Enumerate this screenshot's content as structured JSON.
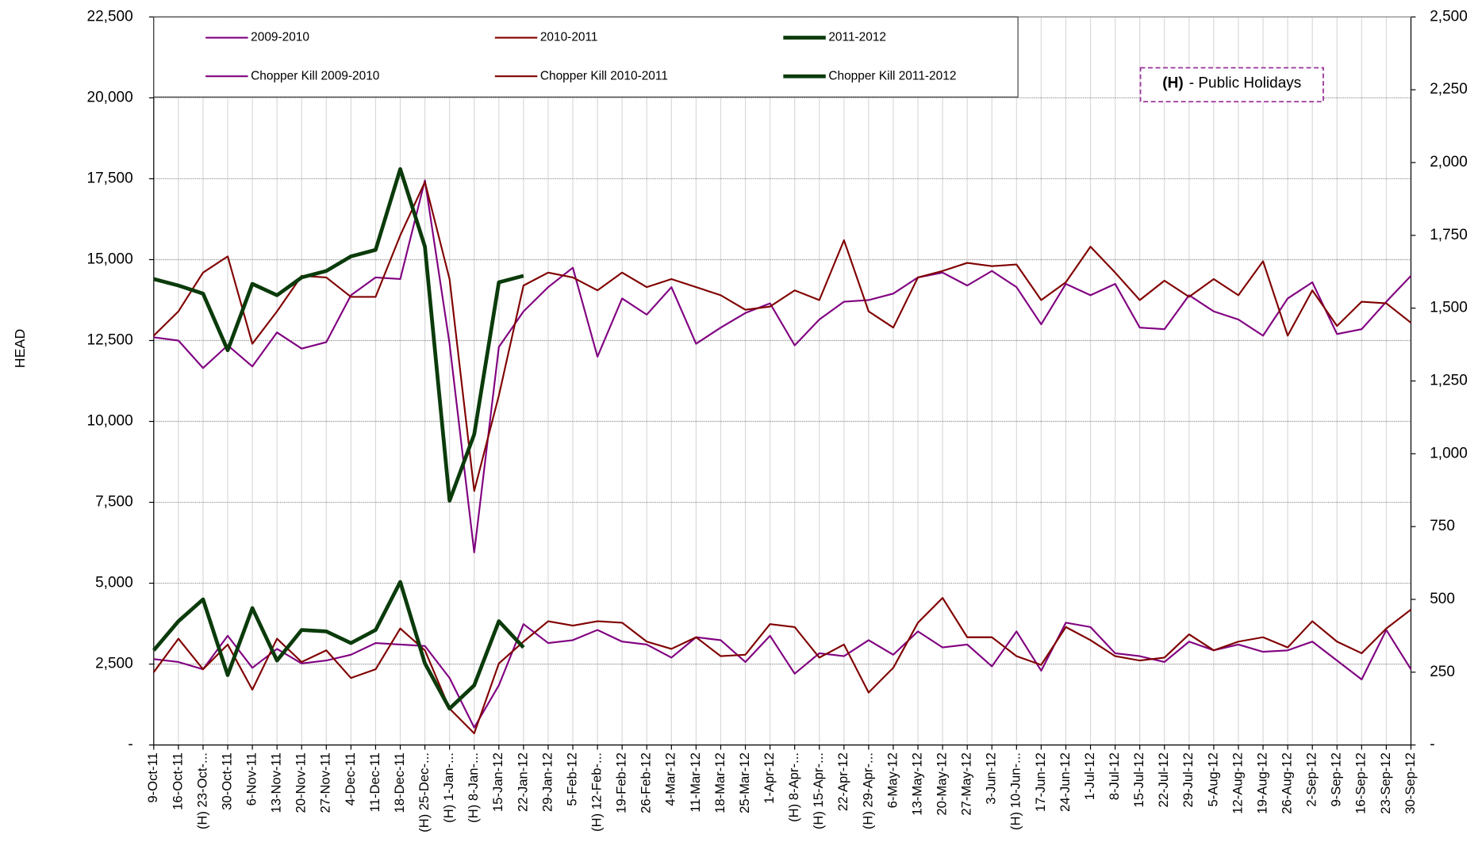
{
  "chart_data": {
    "type": "line",
    "y_label": "HEAD",
    "annotation": {
      "key": "(H)",
      "text": "- Public Holidays"
    },
    "categories": [
      "9-Oct-11",
      "16-Oct-11",
      "(H) 23-Oct-...",
      "30-Oct-11",
      "6-Nov-11",
      "13-Nov-11",
      "20-Nov-11",
      "27-Nov-11",
      "4-Dec-11",
      "11-Dec-11",
      "18-Dec-11",
      "(H) 25-Dec-...",
      "(H) 1-Jan-...",
      "(H) 8-Jan-...",
      "15-Jan-12",
      "22-Jan-12",
      "29-Jan-12",
      "5-Feb-12",
      "(H) 12-Feb-...",
      "19-Feb-12",
      "26-Feb-12",
      "4-Mar-12",
      "11-Mar-12",
      "18-Mar-12",
      "25-Mar-12",
      "1-Apr-12",
      "(H) 8-Apr-...",
      "(H) 15-Apr-...",
      "22-Apr-12",
      "(H) 29-Apr-...",
      "6-May-12",
      "13-May-12",
      "20-May-12",
      "27-May-12",
      "3-Jun-12",
      "(H) 10-Jun-...",
      "17-Jun-12",
      "24-Jun-12",
      "1-Jul-12",
      "8-Jul-12",
      "15-Jul-12",
      "22-Jul-12",
      "29-Jul-12",
      "5-Aug-12",
      "12-Aug-12",
      "19-Aug-12",
      "26-Aug-12",
      "2-Sep-12",
      "9-Sep-12",
      "16-Sep-12",
      "23-Sep-12",
      "30-Sep-12"
    ],
    "ylim": [
      0,
      22500
    ],
    "yticks": [
      {
        "value": 0,
        "label": "-"
      },
      {
        "value": 2500,
        "label": "2,500"
      },
      {
        "value": 5000,
        "label": "5,000"
      },
      {
        "value": 7500,
        "label": "7,500"
      },
      {
        "value": 10000,
        "label": "10,000"
      },
      {
        "value": 12500,
        "label": "12,500"
      },
      {
        "value": 15000,
        "label": "15,000"
      },
      {
        "value": 17500,
        "label": "17,500"
      },
      {
        "value": 20000,
        "label": "20,000"
      },
      {
        "value": 22500,
        "label": "22,500"
      }
    ],
    "y2lim": [
      0,
      2500
    ],
    "y2ticks": [
      {
        "value": 0,
        "label": "-"
      },
      250,
      500,
      750,
      {
        "value": 1000,
        "label": "1,000"
      },
      {
        "value": 1250,
        "label": "1,250"
      },
      {
        "value": 1500,
        "label": "1,500"
      },
      {
        "value": 1750,
        "label": "1,750"
      },
      {
        "value": 2000,
        "label": "2,000"
      },
      {
        "value": 2250,
        "label": "2,250"
      },
      {
        "value": 2500,
        "label": "2,500"
      }
    ],
    "grid": true,
    "series": [
      {
        "name": "2009-2010",
        "color": "#800080",
        "values": [
          12600,
          12500,
          11650,
          12350,
          11700,
          12750,
          12250,
          12450,
          13900,
          14450,
          14400,
          17450,
          12400,
          5950,
          12300,
          13400,
          14150,
          14750,
          12000,
          13800,
          13300,
          14150,
          12400,
          12900,
          13350,
          13650,
          12350,
          13150,
          13700,
          13750,
          13950,
          14450,
          14600,
          14200,
          14650,
          14150,
          13000,
          14250,
          13900,
          14250,
          12900,
          12850,
          13900,
          13400,
          13150,
          12650,
          13800,
          14300,
          12700,
          12850,
          13700,
          14500
        ]
      },
      {
        "name": "2010-2011",
        "color": "#800000",
        "values": [
          12650,
          13400,
          14600,
          15100,
          12400,
          13400,
          14500,
          14450,
          13850,
          13850,
          15750,
          17400,
          14400,
          7850,
          10800,
          14200,
          14600,
          14450,
          14050,
          14600,
          14150,
          14400,
          14150,
          13900,
          13450,
          13550,
          14050,
          13750,
          15600,
          13400,
          12900,
          14450,
          14650,
          14900,
          14800,
          14850,
          13750,
          14300,
          15400,
          14600,
          13750,
          14350,
          13850,
          14400,
          13900,
          14950,
          12650,
          14050,
          12950,
          13700,
          13650,
          13050
        ]
      },
      {
        "name": "2011-2012",
        "color": "#0b3b0b",
        "values": [
          14400,
          14200,
          13950,
          12200,
          14250,
          13900,
          14450,
          14650,
          15100,
          15300,
          17800,
          15400,
          7550,
          9600,
          14300,
          14500,
          null,
          null,
          null,
          null,
          null,
          null,
          null,
          null,
          null,
          null,
          null,
          null,
          null,
          null,
          null,
          null,
          null,
          null,
          null,
          null,
          null,
          null,
          null,
          null,
          null,
          null,
          null,
          null,
          null,
          null,
          null,
          null,
          null,
          null,
          null,
          null
        ]
      },
      {
        "name": "Chopper Kill 2009-2010",
        "color": "#800080",
        "axis": "y2",
        "values": [
          295,
          285,
          260,
          375,
          265,
          330,
          280,
          290,
          310,
          350,
          345,
          340,
          230,
          60,
          205,
          415,
          350,
          360,
          395,
          355,
          345,
          300,
          370,
          360,
          285,
          375,
          245,
          315,
          305,
          360,
          310,
          390,
          335,
          345,
          270,
          390,
          255,
          420,
          405,
          315,
          305,
          285,
          355,
          325,
          345,
          320,
          325,
          355,
          290,
          225,
          395,
          260
        ]
      },
      {
        "name": "Chopper Kill 2010-2011",
        "color": "#800000",
        "axis": "y2",
        "values": [
          250,
          365,
          260,
          345,
          190,
          365,
          285,
          325,
          230,
          260,
          400,
          325,
          125,
          40,
          280,
          355,
          425,
          410,
          425,
          420,
          355,
          330,
          370,
          305,
          310,
          415,
          405,
          300,
          345,
          180,
          265,
          420,
          505,
          370,
          370,
          305,
          275,
          405,
          360,
          305,
          290,
          300,
          380,
          325,
          355,
          370,
          335,
          425,
          355,
          315,
          400,
          465
        ]
      },
      {
        "name": "Chopper Kill 2011-2012",
        "color": "#0b3b0b",
        "axis": "y2",
        "values": [
          325,
          425,
          500,
          240,
          470,
          290,
          395,
          390,
          350,
          395,
          560,
          280,
          125,
          205,
          425,
          335,
          null,
          null,
          null,
          null,
          null,
          null,
          null,
          null,
          null,
          null,
          null,
          null,
          null,
          null,
          null,
          null,
          null,
          null,
          null,
          null,
          null,
          null,
          null,
          null,
          null,
          null,
          null,
          null,
          null,
          null,
          null,
          null,
          null,
          null,
          null,
          null
        ]
      }
    ]
  }
}
